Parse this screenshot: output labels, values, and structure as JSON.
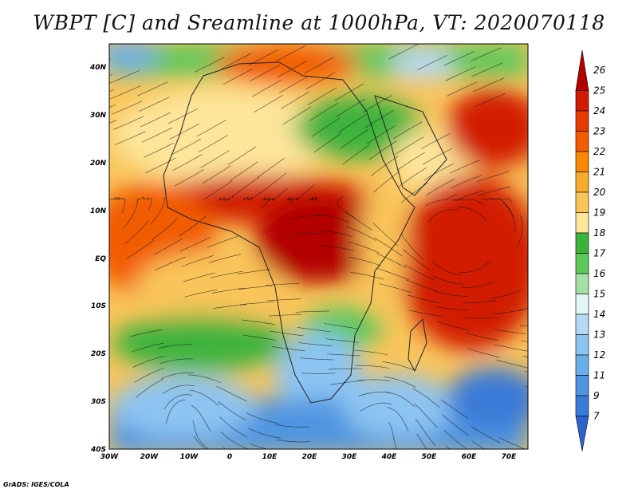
{
  "title": "WBPT [C] and Sreamline at 1000hPa, VT: 2020070118",
  "credit": "GrADS: IGES/COLA",
  "map": {
    "lon_labels": [
      "30W",
      "20W",
      "10W",
      "0",
      "10E",
      "20E",
      "30E",
      "40E",
      "50E",
      "60E",
      "70E"
    ],
    "lat_labels": [
      "40N",
      "30N",
      "20N",
      "10N",
      "EQ",
      "10S",
      "20S",
      "30S",
      "40S"
    ]
  },
  "colorbar": {
    "levels": [
      "26",
      "25",
      "24",
      "23",
      "22",
      "21",
      "20",
      "19",
      "18",
      "17",
      "16",
      "15",
      "14",
      "13",
      "12",
      "11",
      "9",
      "7"
    ],
    "colors": [
      "#b30000",
      "#d11a00",
      "#e63a00",
      "#f25c00",
      "#f78800",
      "#f7ab2a",
      "#f9c55a",
      "#fde59a",
      "#3cb33c",
      "#5cc85c",
      "#a4e0a4",
      "#e4f7f4",
      "#b4d9f5",
      "#8cc4f2",
      "#6aaee8",
      "#4f95e0",
      "#3a7ad8",
      "#2d63cf"
    ]
  }
}
